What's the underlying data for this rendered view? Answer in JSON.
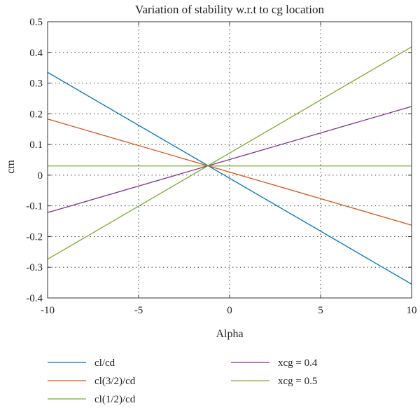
{
  "chart_data": {
    "type": "line",
    "title": "Variation of stability w.r.t to cg location",
    "xlabel": "Alpha",
    "ylabel": "cm",
    "xlim": [
      -10,
      10
    ],
    "ylim": [
      -0.4,
      0.5
    ],
    "xticks": [
      "-10",
      "-5",
      "0",
      "5",
      "10"
    ],
    "yticks": [
      "0.5",
      "0.4",
      "0.3",
      "0.2",
      "0.1",
      "0",
      "-0.1",
      "-0.2",
      "-0.3",
      "-0.4"
    ],
    "grid": true,
    "legend_position": "bottom",
    "series": [
      {
        "name": "cl/cd",
        "color": "#0072bd",
        "x": [
          -10,
          10
        ],
        "y": [
          0.335,
          -0.355
        ]
      },
      {
        "name": "cl(3/2)/cd",
        "color": "#d95319",
        "x": [
          -10,
          10
        ],
        "y": [
          0.183,
          -0.163
        ]
      },
      {
        "name": "cl(1/2)/cd",
        "color": "#77ac30",
        "x": [
          -10,
          10
        ],
        "y": [
          0.03,
          0.03
        ]
      },
      {
        "name": "xcg = 0.4",
        "color": "#7e2f8e",
        "x": [
          -10,
          10
        ],
        "y": [
          -0.122,
          0.224
        ]
      },
      {
        "name": "xcg = 0.5",
        "color": "#77ac30",
        "x": [
          -10,
          10
        ],
        "y": [
          -0.274,
          0.418
        ]
      }
    ]
  }
}
